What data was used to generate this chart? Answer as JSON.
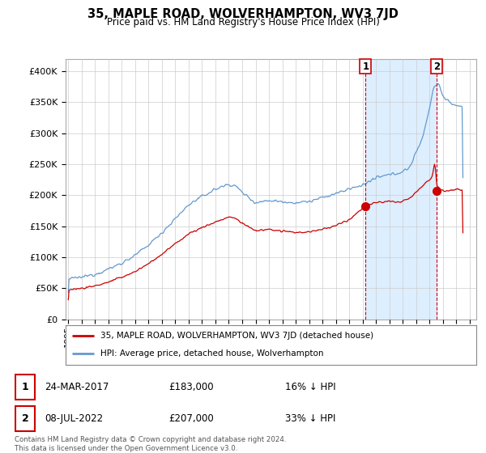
{
  "title": "35, MAPLE ROAD, WOLVERHAMPTON, WV3 7JD",
  "subtitle": "Price paid vs. HM Land Registry's House Price Index (HPI)",
  "legend_line1": "35, MAPLE ROAD, WOLVERHAMPTON, WV3 7JD (detached house)",
  "legend_line2": "HPI: Average price, detached house, Wolverhampton",
  "footnote": "Contains HM Land Registry data © Crown copyright and database right 2024.\nThis data is licensed under the Open Government Licence v3.0.",
  "point1_date": "24-MAR-2017",
  "point1_price": "£183,000",
  "point1_hpi": "16% ↓ HPI",
  "point2_date": "08-JUL-2022",
  "point2_price": "£207,000",
  "point2_hpi": "33% ↓ HPI",
  "red_color": "#cc0000",
  "blue_color": "#6699cc",
  "shade_color": "#ddeeff",
  "grid_color": "#cccccc",
  "background_color": "#ffffff",
  "ylim": [
    0,
    420000
  ],
  "yticks": [
    0,
    50000,
    100000,
    150000,
    200000,
    250000,
    300000,
    350000,
    400000
  ],
  "xlim_start": 1994.8,
  "xlim_end": 2025.5,
  "sale1_year": 2017.22,
  "sale1_price": 183000,
  "sale2_year": 2022.52,
  "sale2_price": 207000
}
